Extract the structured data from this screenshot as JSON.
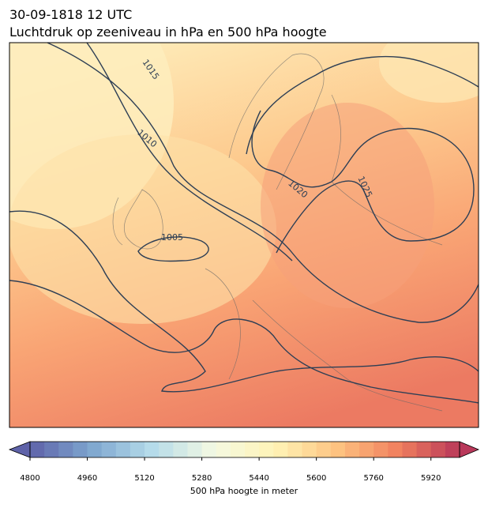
{
  "title": "30-09-1818 12 UTC",
  "subtitle": "Luchtdruk op zeeniveau in hPa en 500 hPa hoogte",
  "isobar_labels": [
    1015,
    1010,
    1005,
    1020,
    1025
  ],
  "colorbar": {
    "label": "500 hPa hoogte in meter",
    "clim": [
      4800,
      6000
    ],
    "step": 40,
    "ticks": [
      4800,
      4960,
      5120,
      5280,
      5440,
      5600,
      5760,
      5920
    ],
    "colormap": [
      "#5e62a8",
      "#7ea6cf",
      "#b6dcea",
      "#f4f9e2",
      "#fff3b5",
      "#fdc381",
      "#f0805e",
      "#b9385a"
    ]
  }
}
